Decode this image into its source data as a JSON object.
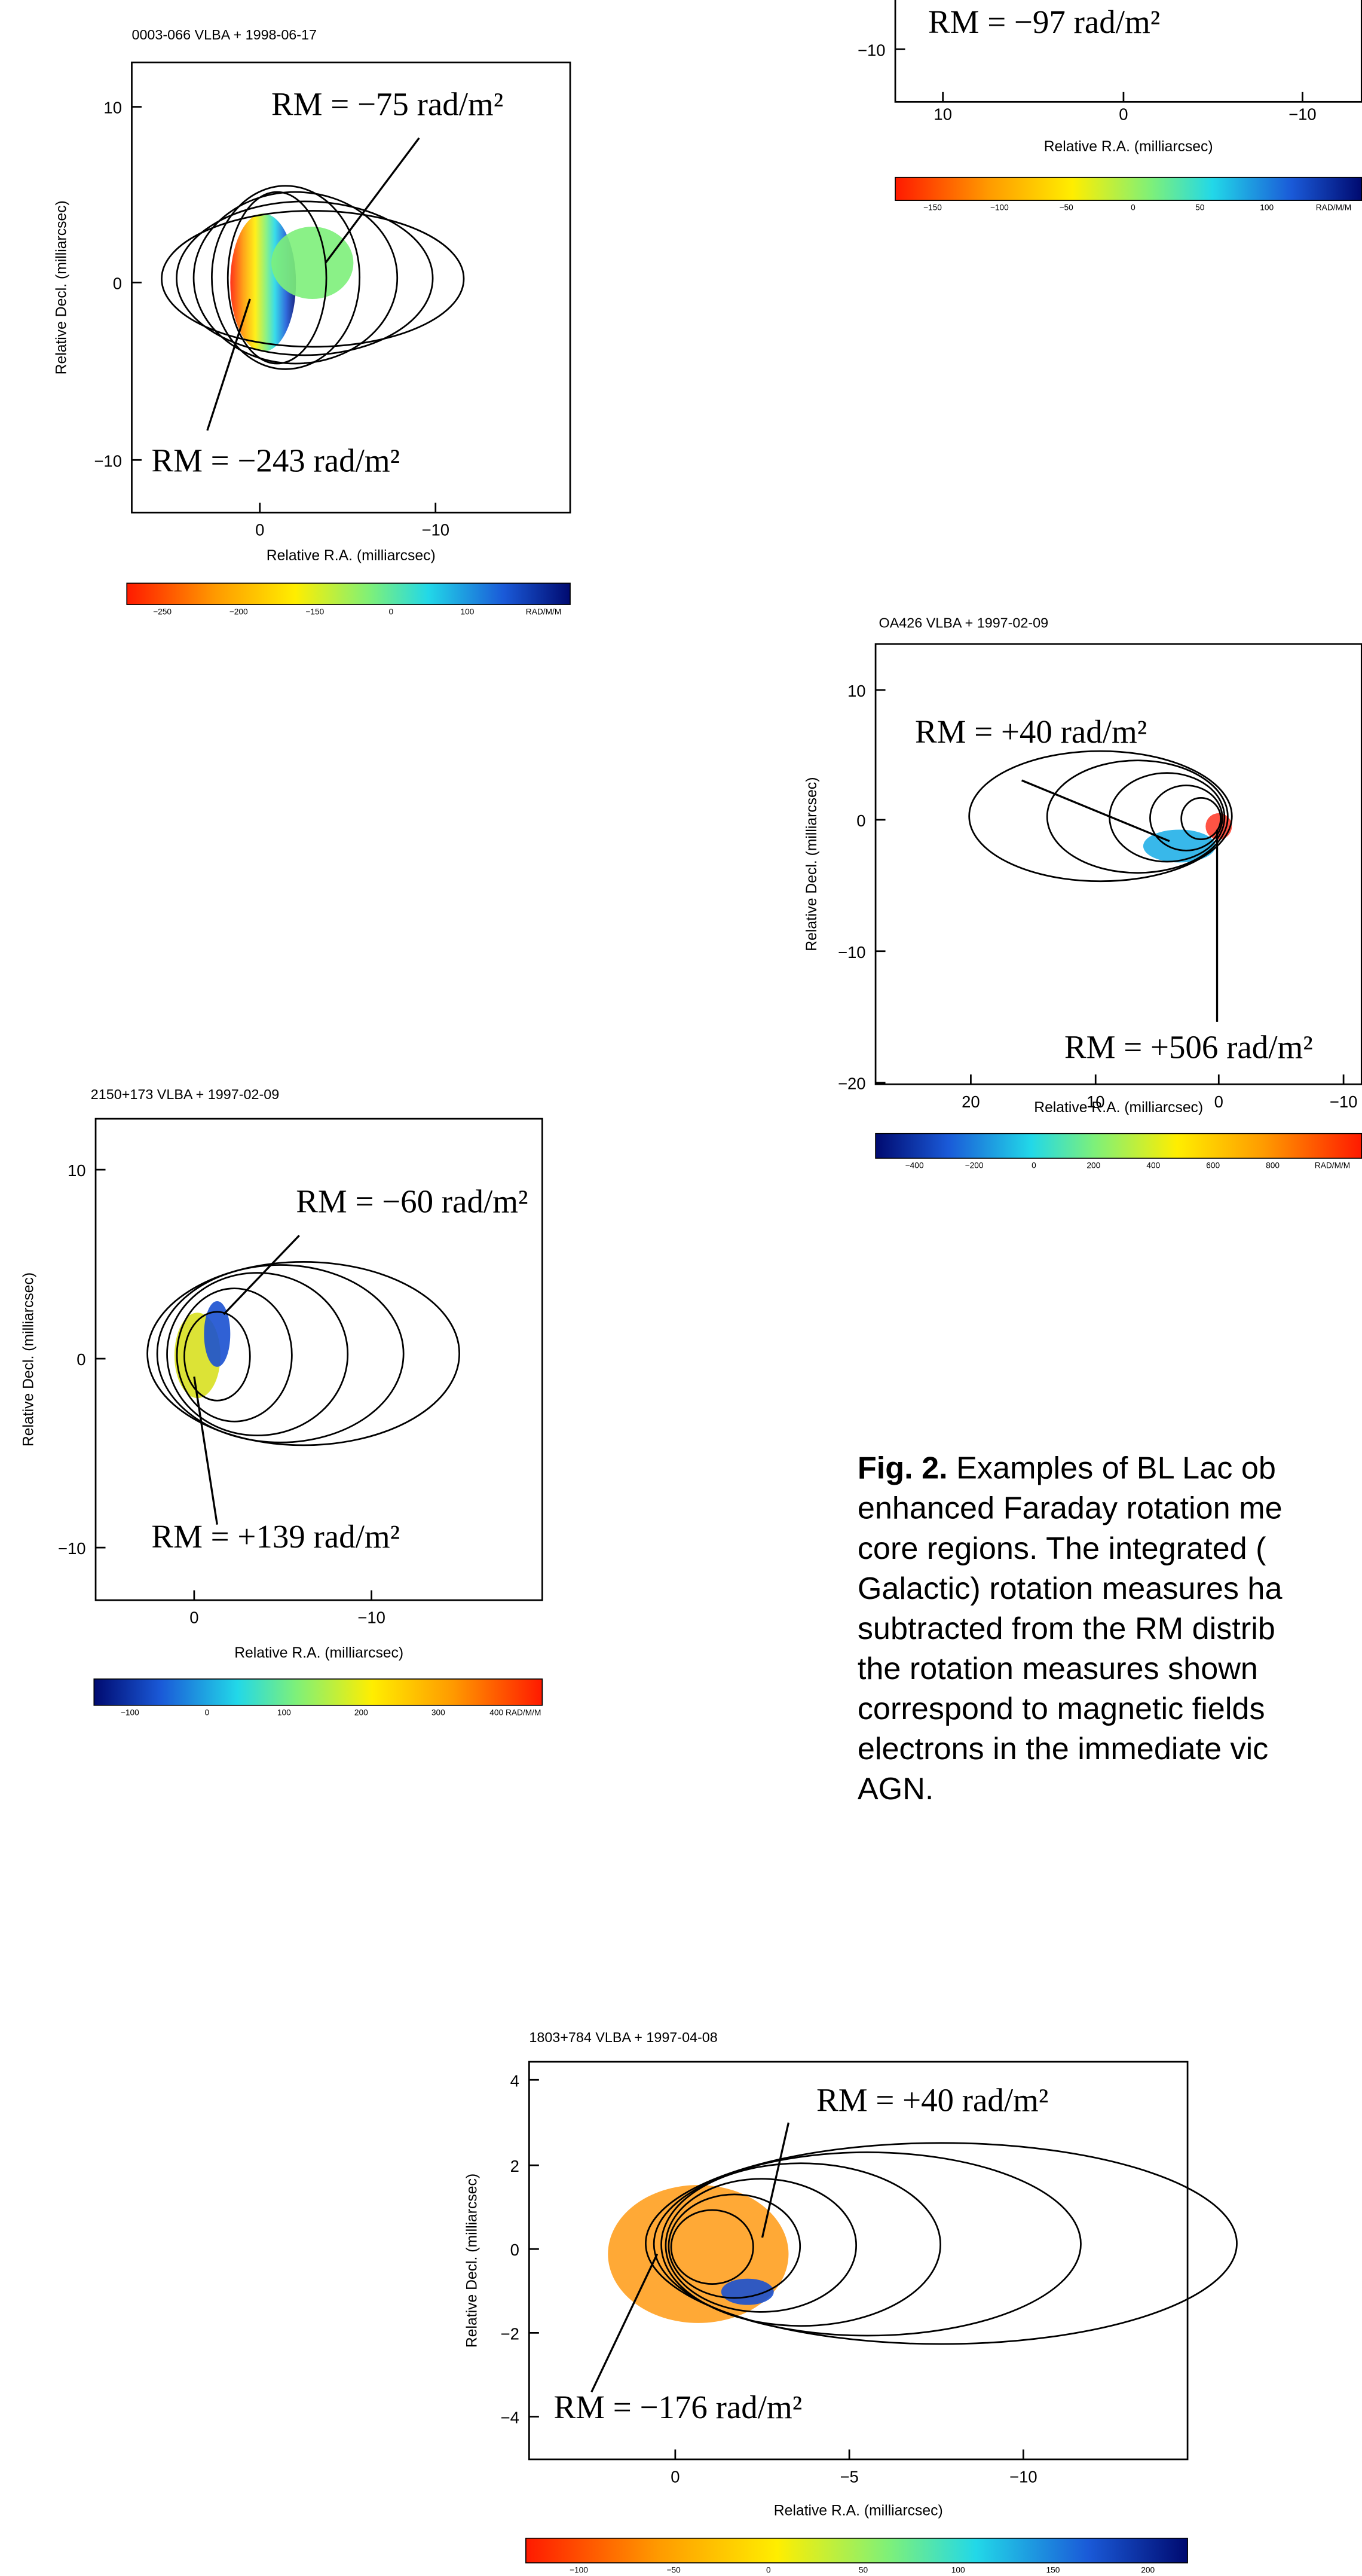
{
  "panels": [
    {
      "header": "0003-066  VLBA  +  1998-06-17",
      "ylabel": "Relative Decl. (milliarcsec)",
      "xlabel": "Relative R.A. (milliarcsec)",
      "yticks": [
        "10",
        "0",
        "−10"
      ],
      "xticks": [
        "0",
        "−10"
      ],
      "rm": [
        "RM = −75 rad/m²",
        "RM = −243 rad/m²"
      ],
      "colorbar": [
        "−250",
        "−200",
        "−150",
        "0",
        "100",
        "RAD/M/M"
      ]
    },
    {
      "yticks": [
        "−10"
      ],
      "xticks": [
        "10",
        "0",
        "−10"
      ],
      "xlabel": "Relative R.A. (milliarcsec)",
      "rm": [
        "RM = −97 rad/m²"
      ],
      "colorbar": [
        "−150",
        "−100",
        "−50",
        "0",
        "50",
        "100",
        "RAD/M/M"
      ]
    },
    {
      "header": "OA426  VLBA  +  1997-02-09",
      "ylabel": "Relative Decl. (milliarcsec)",
      "xlabel": "Relative R.A. (milliarcsec)",
      "yticks": [
        "10",
        "0",
        "−10",
        "−20"
      ],
      "xticks": [
        "20",
        "10",
        "0",
        "−10"
      ],
      "rm": [
        "RM = +40 rad/m²",
        "RM = +506 rad/m²"
      ],
      "colorbar": [
        "−400",
        "−200",
        "0",
        "200",
        "400",
        "600",
        "800",
        "RAD/M/M"
      ]
    },
    {
      "header": "2150+173  VLBA  +  1997-02-09",
      "ylabel": "Relative Decl. (milliarcsec)",
      "xlabel": "Relative R.A. (milliarcsec)",
      "yticks": [
        "10",
        "0",
        "−10"
      ],
      "xticks": [
        "0",
        "−10"
      ],
      "rm": [
        "RM = −60 rad/m²",
        "RM = +139 rad/m²"
      ],
      "colorbar": [
        "−100",
        "0",
        "100",
        "200",
        "300",
        "400 RAD/M/M"
      ]
    },
    {
      "header": "1803+784  VLBA  +  1997-04-08",
      "ylabel": "Relative Decl. (milliarcsec)",
      "xlabel": "Relative R.A. (milliarcsec)",
      "yticks": [
        "4",
        "2",
        "0",
        "−2",
        "−4"
      ],
      "xticks": [
        "0",
        "−5",
        "−10"
      ],
      "rm": [
        "RM = +40 rad/m²",
        "RM = −176 rad/m²"
      ],
      "colorbar": [
        "−100",
        "−50",
        "0",
        "50",
        "100",
        "150",
        "200"
      ]
    }
  ],
  "caption": {
    "label": "Fig. 2.",
    "lines": [
      " Examples of BL Lac ob",
      "enhanced Faraday rotation me",
      "core regions. The integrated (",
      "Galactic) rotation measures ha",
      "subtracted from the RM distrib",
      "the rotation measures shown",
      "correspond to magnetic fields",
      "electrons in the immediate vic",
      "AGN."
    ]
  }
}
